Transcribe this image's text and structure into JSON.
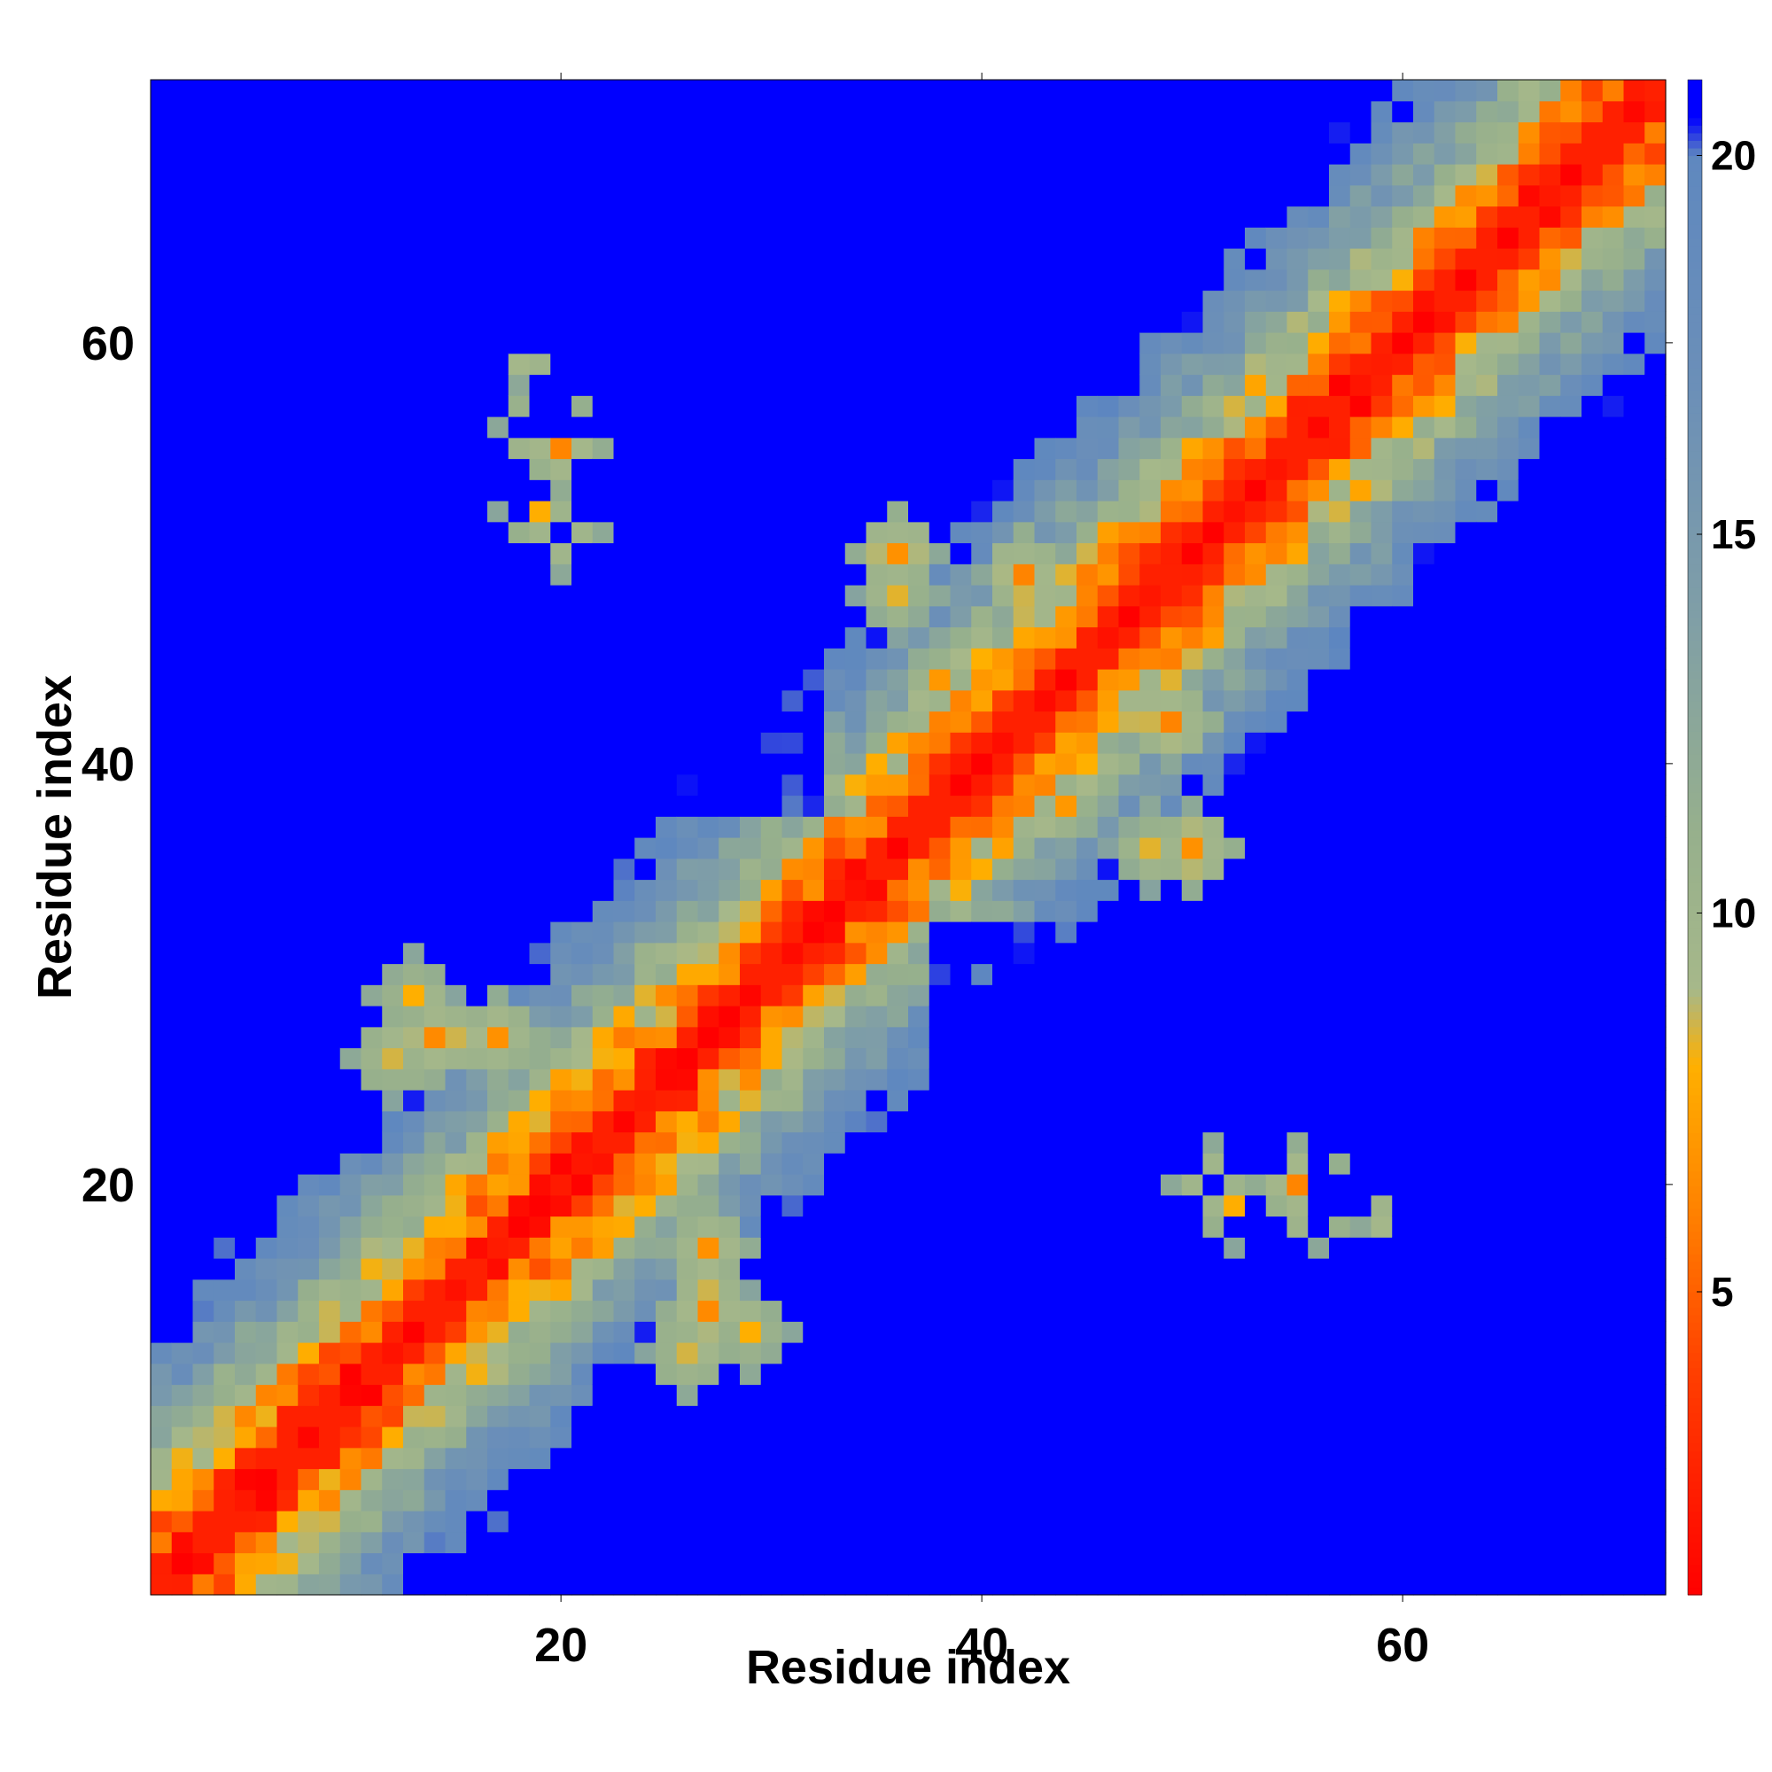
{
  "chart_data": {
    "type": "heatmap",
    "title": "",
    "xlabel": "Residue index",
    "ylabel": "Residue index",
    "n_residues": 72,
    "x_range": [
      1,
      72
    ],
    "y_range": [
      1,
      72
    ],
    "x_ticks": [
      20,
      40,
      60
    ],
    "y_ticks": [
      20,
      40,
      60
    ],
    "value_clip_max": 21,
    "colorbar": {
      "ticks": [
        5,
        10,
        15,
        20
      ],
      "range": [
        1,
        21
      ],
      "stops": [
        {
          "value": 1,
          "color": "#ff0000"
        },
        {
          "value": 4,
          "color": "#ff4000"
        },
        {
          "value": 6,
          "color": "#ff8000"
        },
        {
          "value": 8,
          "color": "#ffb000"
        },
        {
          "value": 9,
          "color": "#a6b88a"
        },
        {
          "value": 11,
          "color": "#97b08c"
        },
        {
          "value": 14,
          "color": "#7f9ea7"
        },
        {
          "value": 17,
          "color": "#6b8fb8"
        },
        {
          "value": 20,
          "color": "#5f88bf"
        },
        {
          "value": 20.5,
          "color": "#0000ff"
        },
        {
          "value": 21,
          "color": "#0000ff"
        }
      ]
    },
    "matrix_description": "Symmetric residue–residue distance map (Å). Values approximately: diagonal 0–2, band |i-j|<=4 under 8, rising to ~20 by |i-j|~25, with additional low-distance contact patches.",
    "model": {
      "diagonal_value": 1.5,
      "band_slope": 1.6,
      "band_offset": 1.5,
      "far_value": 21,
      "contacts": [
        {
          "i": 18,
          "j": 60,
          "value": 6
        },
        {
          "i": 19,
          "j": 56,
          "value": 6
        },
        {
          "i": 19,
          "j": 52,
          "value": 7
        },
        {
          "i": 12,
          "j": 26,
          "value": 7
        },
        {
          "i": 13,
          "j": 29,
          "value": 7
        },
        {
          "i": 14,
          "j": 27,
          "value": 6
        },
        {
          "i": 20,
          "j": 25,
          "value": 7
        },
        {
          "i": 22,
          "j": 26,
          "value": 7
        },
        {
          "i": 36,
          "j": 48,
          "value": 7
        },
        {
          "i": 38,
          "j": 44,
          "value": 7
        },
        {
          "i": 36,
          "j": 50,
          "value": 6
        },
        {
          "i": 42,
          "j": 49,
          "value": 6
        },
        {
          "i": 50,
          "j": 36,
          "value": 6
        },
        {
          "i": 20,
          "j": 51,
          "value": 7
        },
        {
          "i": 20,
          "j": 55,
          "value": 6
        },
        {
          "i": 20,
          "j": 58,
          "value": 7
        },
        {
          "i": 17,
          "j": 27,
          "value": 6
        },
        {
          "i": 5,
          "j": 9,
          "value": 6
        }
      ],
      "blue_regions": [
        {
          "x0": 1,
          "x1": 12,
          "y0": 40,
          "y1": 72
        },
        {
          "x0": 36,
          "x1": 72,
          "y0": 1,
          "y1": 12
        },
        {
          "x0": 22,
          "x1": 32,
          "y0": 38,
          "y1": 46
        },
        {
          "x0": 38,
          "x1": 46,
          "y0": 22,
          "y1": 32
        },
        {
          "x0": 62,
          "x1": 72,
          "y0": 30,
          "y1": 38
        },
        {
          "x0": 30,
          "x1": 38,
          "y0": 62,
          "y1": 72
        }
      ]
    }
  }
}
